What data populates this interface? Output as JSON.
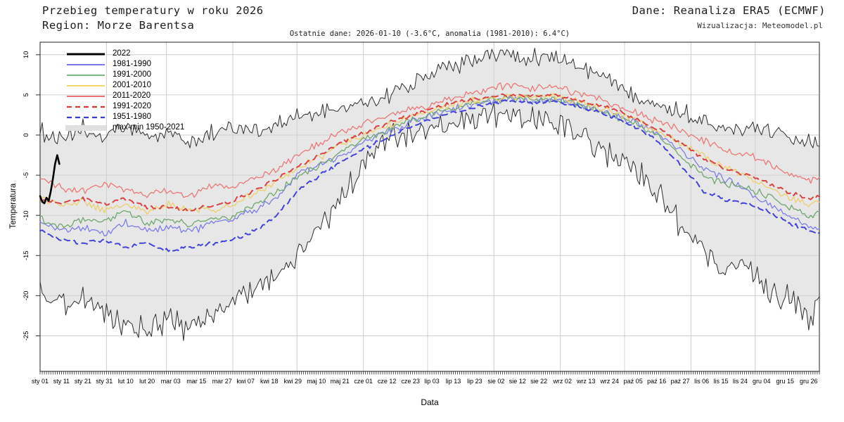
{
  "header": {
    "title": "Przebieg temperatury w roku 2026",
    "region": "Region: Morze Barentsa",
    "source": "Dane: Reanaliza ERA5 (ECMWF)",
    "visualization": "Wizualizacja: Meteomodel.pl",
    "last_data": "Ostatnie dane: 2026-01-10 (-3.6°C, anomalia (1981-2010): 6.4°C)"
  },
  "chart_data": {
    "type": "line",
    "title": "Przebieg temperatury w roku 2026",
    "subtitle": "Region: Morze Barentsa",
    "xlabel": "Data",
    "ylabel": "Temperatura",
    "ylim": [
      -29.4,
      11.6
    ],
    "y_ticks": [
      10,
      5,
      0,
      -5,
      -10,
      -15,
      -20,
      -25
    ],
    "grid": true,
    "legend_position": "top-left",
    "days_total": 365,
    "x_tick_labels": [
      "sty 01",
      "sty 11",
      "sty 21",
      "sty 31",
      "lut 10",
      "lut 20",
      "mar 03",
      "mar 15",
      "mar 27",
      "kwi 07",
      "kwi 18",
      "kwi 29",
      "maj 10",
      "maj 21",
      "cze 01",
      "cze 12",
      "cze 23",
      "lip 03",
      "lip 13",
      "lip 23",
      "sie 02",
      "sie 12",
      "sie 22",
      "wrz 02",
      "wrz 13",
      "wrz 24",
      "paź 05",
      "paź 16",
      "paź 27",
      "lis 06",
      "lis 15",
      "lis 24",
      "gru 04",
      "gru 15",
      "gru 26"
    ],
    "x_tick_days": [
      1,
      11,
      21,
      31,
      41,
      51,
      62,
      74,
      86,
      97,
      108,
      119,
      130,
      141,
      152,
      163,
      174,
      184,
      194,
      204,
      214,
      224,
      234,
      245,
      256,
      267,
      278,
      289,
      300,
      310,
      319,
      328,
      338,
      349,
      360
    ],
    "month_grid_days": [
      32,
      60,
      91,
      121,
      152,
      182,
      213,
      244,
      274,
      305,
      335
    ],
    "anchor_days": [
      1,
      11,
      21,
      31,
      41,
      51,
      61,
      71,
      81,
      91,
      101,
      111,
      121,
      131,
      141,
      151,
      161,
      171,
      181,
      191,
      201,
      211,
      221,
      231,
      241,
      251,
      261,
      271,
      281,
      291,
      301,
      311,
      321,
      331,
      341,
      351,
      361,
      365
    ],
    "band": {
      "label": "max-min 1950-2021",
      "fill": "#e7e7e7",
      "edge_color": "#2f2f2f"
    },
    "series": [
      {
        "name": "max 1950-2021",
        "role": "band-max",
        "color": "#2f2f2f",
        "width": 1,
        "dash": null,
        "jitter": 1.35,
        "values": [
          0.5,
          -0.8,
          0.8,
          -0.5,
          1.2,
          -0.5,
          0.5,
          -1.0,
          0.3,
          1.0,
          0.5,
          1.2,
          2.0,
          2.8,
          3.2,
          4.0,
          4.5,
          6.0,
          7.5,
          8.5,
          9.0,
          9.8,
          10.2,
          9.6,
          9.8,
          8.8,
          7.5,
          6.2,
          5.0,
          3.8,
          2.8,
          1.8,
          1.2,
          0.8,
          0.5,
          0.2,
          -0.8,
          -0.3
        ]
      },
      {
        "name": "min 1950-2021",
        "role": "band-min",
        "color": "#2f2f2f",
        "width": 1,
        "dash": null,
        "jitter": 2.0,
        "values": [
          -20,
          -21.5,
          -20,
          -22,
          -23.5,
          -24.5,
          -23,
          -24.5,
          -22.5,
          -21,
          -19,
          -17.5,
          -15.5,
          -11.5,
          -8,
          -4,
          -1,
          0.2,
          1.0,
          1.3,
          1.8,
          2.2,
          2.4,
          1.8,
          1.2,
          0.3,
          -1.2,
          -3,
          -5,
          -7.5,
          -11.5,
          -14,
          -17,
          -16,
          -19,
          -20.5,
          -23.5,
          -20
        ]
      },
      {
        "name": "1981-1990",
        "role": "mean",
        "color": "#7d7de8",
        "width": 1.3,
        "dash": null,
        "jitter": 0.55,
        "values": [
          -11,
          -12,
          -11.5,
          -12.5,
          -11,
          -12,
          -11.5,
          -12,
          -11,
          -10.5,
          -9.3,
          -7.8,
          -5.0,
          -3.6,
          -2.6,
          -1.1,
          0.1,
          1.2,
          2.2,
          3.0,
          3.7,
          4.2,
          4.4,
          4.3,
          4.4,
          3.8,
          3.1,
          2.2,
          1.4,
          0.0,
          -2.0,
          -4.2,
          -5.5,
          -7.0,
          -8.5,
          -10.0,
          -11.5,
          -11.8
        ]
      },
      {
        "name": "1991-2000",
        "role": "mean",
        "color": "#6fa66f",
        "width": 1.3,
        "dash": null,
        "jitter": 0.55,
        "values": [
          -10.5,
          -11.5,
          -10.5,
          -11,
          -9.5,
          -11,
          -10.5,
          -11,
          -10.5,
          -10,
          -8.8,
          -7.2,
          -5.2,
          -3.8,
          -2.2,
          -0.8,
          0.4,
          1.5,
          2.4,
          3.2,
          3.9,
          4.3,
          4.5,
          4.4,
          4.5,
          3.9,
          3.2,
          2.2,
          1.2,
          -0.5,
          -2.8,
          -5.2,
          -6.0,
          -6.5,
          -7.5,
          -9.0,
          -10.2,
          -9.8
        ]
      },
      {
        "name": "2001-2010",
        "role": "mean",
        "color": "#ecd06a",
        "width": 1.3,
        "dash": null,
        "jitter": 0.55,
        "values": [
          -7.5,
          -9,
          -8.2,
          -9.5,
          -8.5,
          -9.5,
          -8.5,
          -9.2,
          -9.5,
          -8.5,
          -7.3,
          -5.8,
          -4.2,
          -2.8,
          -1.3,
          0,
          1,
          2,
          2.8,
          3.6,
          4.2,
          4.6,
          4.8,
          4.7,
          4.8,
          4.2,
          3.5,
          2.6,
          1.6,
          0.4,
          -1.2,
          -2.6,
          -4.0,
          -5.2,
          -6.5,
          -7.8,
          -8.6,
          -8.2
        ]
      },
      {
        "name": "2011-2020",
        "role": "mean",
        "color": "#ea7878",
        "width": 1.3,
        "dash": null,
        "jitter": 0.55,
        "values": [
          -5.5,
          -6.5,
          -7,
          -6,
          -6.8,
          -7.5,
          -6.8,
          -7.5,
          -6.5,
          -6.2,
          -5.5,
          -4.3,
          -2.5,
          -1.2,
          0.2,
          1.3,
          2.2,
          3.0,
          3.6,
          4.4,
          5.0,
          5.8,
          6.2,
          5.9,
          6.0,
          5.3,
          4.6,
          3.6,
          2.5,
          1.5,
          0.5,
          -0.7,
          -2.0,
          -2.5,
          -3.5,
          -4.8,
          -5.8,
          -5.2
        ]
      },
      {
        "name": "1991-2020",
        "role": "mean",
        "color": "#d94343",
        "width": 2,
        "dash": "8,6",
        "jitter": 0.3,
        "values": [
          -8,
          -8.5,
          -8,
          -8.5,
          -8,
          -9,
          -9,
          -9.3,
          -8.8,
          -8.2,
          -7.0,
          -5.5,
          -4.0,
          -2.5,
          -1.0,
          0.2,
          1.2,
          2.2,
          3.0,
          3.8,
          4.4,
          4.8,
          5.0,
          4.9,
          5.0,
          4.4,
          3.8,
          3.0,
          1.8,
          0.6,
          -1.2,
          -3.0,
          -4.2,
          -5.0,
          -6.0,
          -7.2,
          -8.0,
          -7.6
        ]
      },
      {
        "name": "1951-1980",
        "role": "mean",
        "color": "#4343d9",
        "width": 2,
        "dash": "8,6",
        "jitter": 0.3,
        "values": [
          -12,
          -13,
          -13.5,
          -13,
          -14,
          -13.5,
          -14.5,
          -14,
          -13.5,
          -13,
          -12.0,
          -10.2,
          -7.0,
          -5.2,
          -3.5,
          -1.9,
          -0.6,
          0.6,
          1.7,
          2.6,
          3.3,
          3.9,
          4.2,
          4.1,
          4.2,
          3.6,
          2.9,
          2.0,
          0.8,
          -1.2,
          -4.0,
          -7.0,
          -8.0,
          -8.5,
          -9.5,
          -11.0,
          -12.0,
          -12.3
        ]
      },
      {
        "name": "2022",
        "role": "current",
        "color": "#000000",
        "width": 2.6,
        "dash": null,
        "jitter": 0,
        "days": [
          1,
          2,
          3,
          4,
          5,
          6,
          7,
          8,
          9,
          10
        ],
        "values": [
          -7.6,
          -8.3,
          -8.5,
          -7.8,
          -8.2,
          -7.0,
          -5.4,
          -3.6,
          -2.5,
          -3.6
        ]
      }
    ],
    "legend": [
      {
        "label": "2022",
        "style": "line",
        "color": "#000000",
        "width": 3,
        "dash": null
      },
      {
        "label": "1981-1990",
        "style": "line",
        "color": "#4a4ad8",
        "width": 1.5,
        "dash": null
      },
      {
        "label": "1991-2000",
        "style": "line",
        "color": "#55a055",
        "width": 1.5,
        "dash": null
      },
      {
        "label": "2001-2010",
        "style": "line",
        "color": "#ecc93f",
        "width": 1.5,
        "dash": null
      },
      {
        "label": "2011-2020",
        "style": "line",
        "color": "#e04343",
        "width": 1.5,
        "dash": null
      },
      {
        "label": "1991-2020",
        "style": "line",
        "color": "#d93a3a",
        "width": 2.2,
        "dash": "7,5"
      },
      {
        "label": "1951-1980",
        "style": "line",
        "color": "#3a3ad9",
        "width": 2.2,
        "dash": "7,5"
      },
      {
        "label": "max-min 1950-2021",
        "style": "band",
        "color": "#e0e0e0",
        "width": 0,
        "dash": null
      }
    ]
  }
}
